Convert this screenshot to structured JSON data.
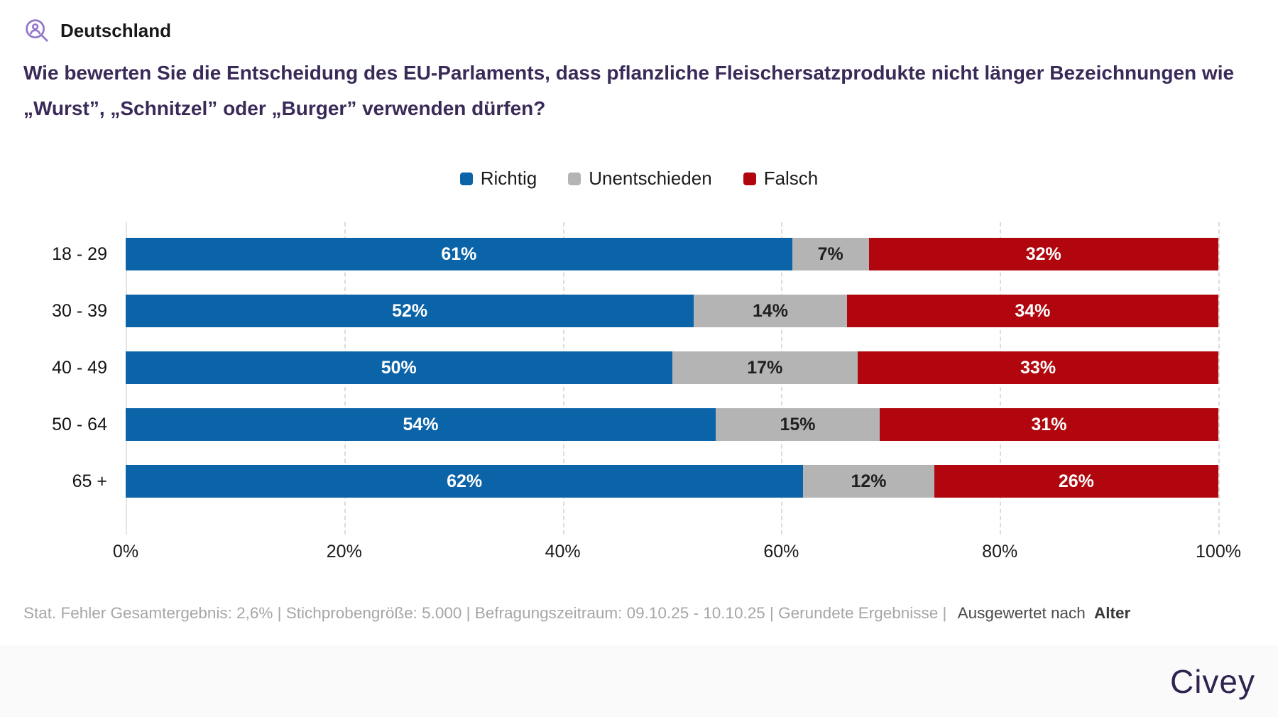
{
  "header": {
    "region": "Deutschland",
    "title_line1": "Wie bewerten Sie die Entscheidung des EU-Parlaments, dass pflanzliche Fleischersatzprodukte nicht länger Bezeichnungen wie",
    "title_line2": "„Wurst”, „Schnitzel” oder „Burger” verwenden dürfen?"
  },
  "icons": {
    "region_icon": "person-search-icon",
    "region_icon_color": "#9277c9"
  },
  "colors": {
    "richtig_blue": "#0b63a8",
    "unentschieden_gray": "#b4b4b4",
    "falsch_red": "#b1060d",
    "title_purple": "#3a2a58",
    "brand_purple": "#30234f",
    "gridline": "#dcdcdc",
    "band_background": "#fafafa"
  },
  "chart_data": {
    "type": "bar",
    "orientation": "horizontal-stacked",
    "title": "Wie bewerten Sie die Entscheidung des EU-Parlaments, dass pflanzliche Fleischersatzprodukte nicht länger Bezeichnungen wie „Wurst”, „Schnitzel” oder „Burger” verwenden dürfen?",
    "categories": [
      "18 - 29",
      "30 - 39",
      "40 - 49",
      "50 - 64",
      "65 +"
    ],
    "series": [
      {
        "name": "Richtig",
        "color": "#0b63a8",
        "values": [
          61,
          52,
          50,
          54,
          62
        ]
      },
      {
        "name": "Unentschieden",
        "color": "#b4b4b4",
        "values": [
          7,
          14,
          17,
          15,
          12
        ]
      },
      {
        "name": "Falsch",
        "color": "#b1060d",
        "values": [
          32,
          34,
          33,
          31,
          26
        ]
      }
    ],
    "x_ticks": [
      "0%",
      "20%",
      "40%",
      "60%",
      "80%",
      "100%"
    ],
    "xlim": [
      0,
      100
    ],
    "value_suffix": "%",
    "grid": "dashed-vertical",
    "legend_position": "top-center"
  },
  "footer": {
    "meta": "Stat. Fehler Gesamtergebnis: 2,6% | Stichprobengröße: 5.000 | Befragungszeitraum: 09.10.25 - 10.10.25 | Gerundete Ergebnisse |",
    "analysis_label": "Ausgewertet nach",
    "analysis_value": "Alter"
  },
  "brand": {
    "logo_text": "Civey"
  }
}
